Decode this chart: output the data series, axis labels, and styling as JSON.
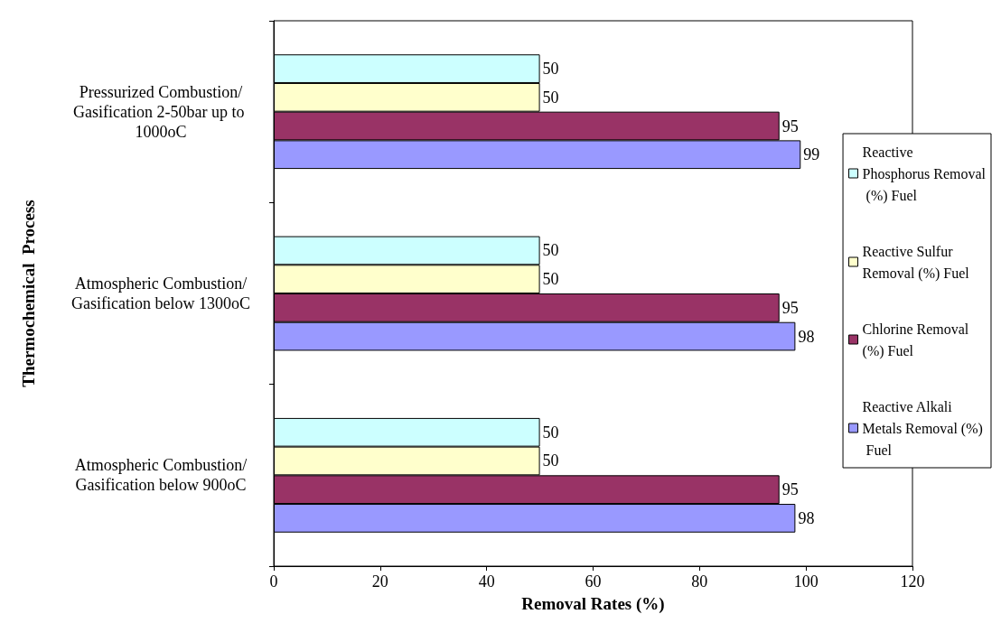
{
  "chart_data": {
    "type": "bar",
    "orientation": "horizontal",
    "xlabel": "Removal Rates (%)",
    "ylabel": "Thermochemical  Process",
    "categories": [
      "Pressurized Combustion/Gasification 2-50bar up to 1000oC",
      "Atmospheric Combustion/Gasification below 1300oC",
      "Atmospheric Combustion/Gasification below 900oC"
    ],
    "series": [
      {
        "name": "Reactive Phosphorus Removal (%) Fuel",
        "color": "#ccffff",
        "values": [
          50,
          50,
          50
        ]
      },
      {
        "name": "Reactive Sulfur Removal (%) Fuel",
        "color": "#ffffcc",
        "values": [
          50,
          50,
          50
        ]
      },
      {
        "name": "Chlorine Removal (%) Fuel",
        "color": "#993366",
        "values": [
          95,
          95,
          95
        ]
      },
      {
        "name": "Reactive Alkali Metals Removal (%) Fuel",
        "color": "#9999ff",
        "values": [
          99,
          98,
          98
        ]
      }
    ],
    "xlim": [
      0,
      120
    ],
    "xticks": [
      0,
      20,
      40,
      60,
      80,
      100,
      120
    ],
    "data_labels": true,
    "grid": false,
    "legend": "right"
  }
}
